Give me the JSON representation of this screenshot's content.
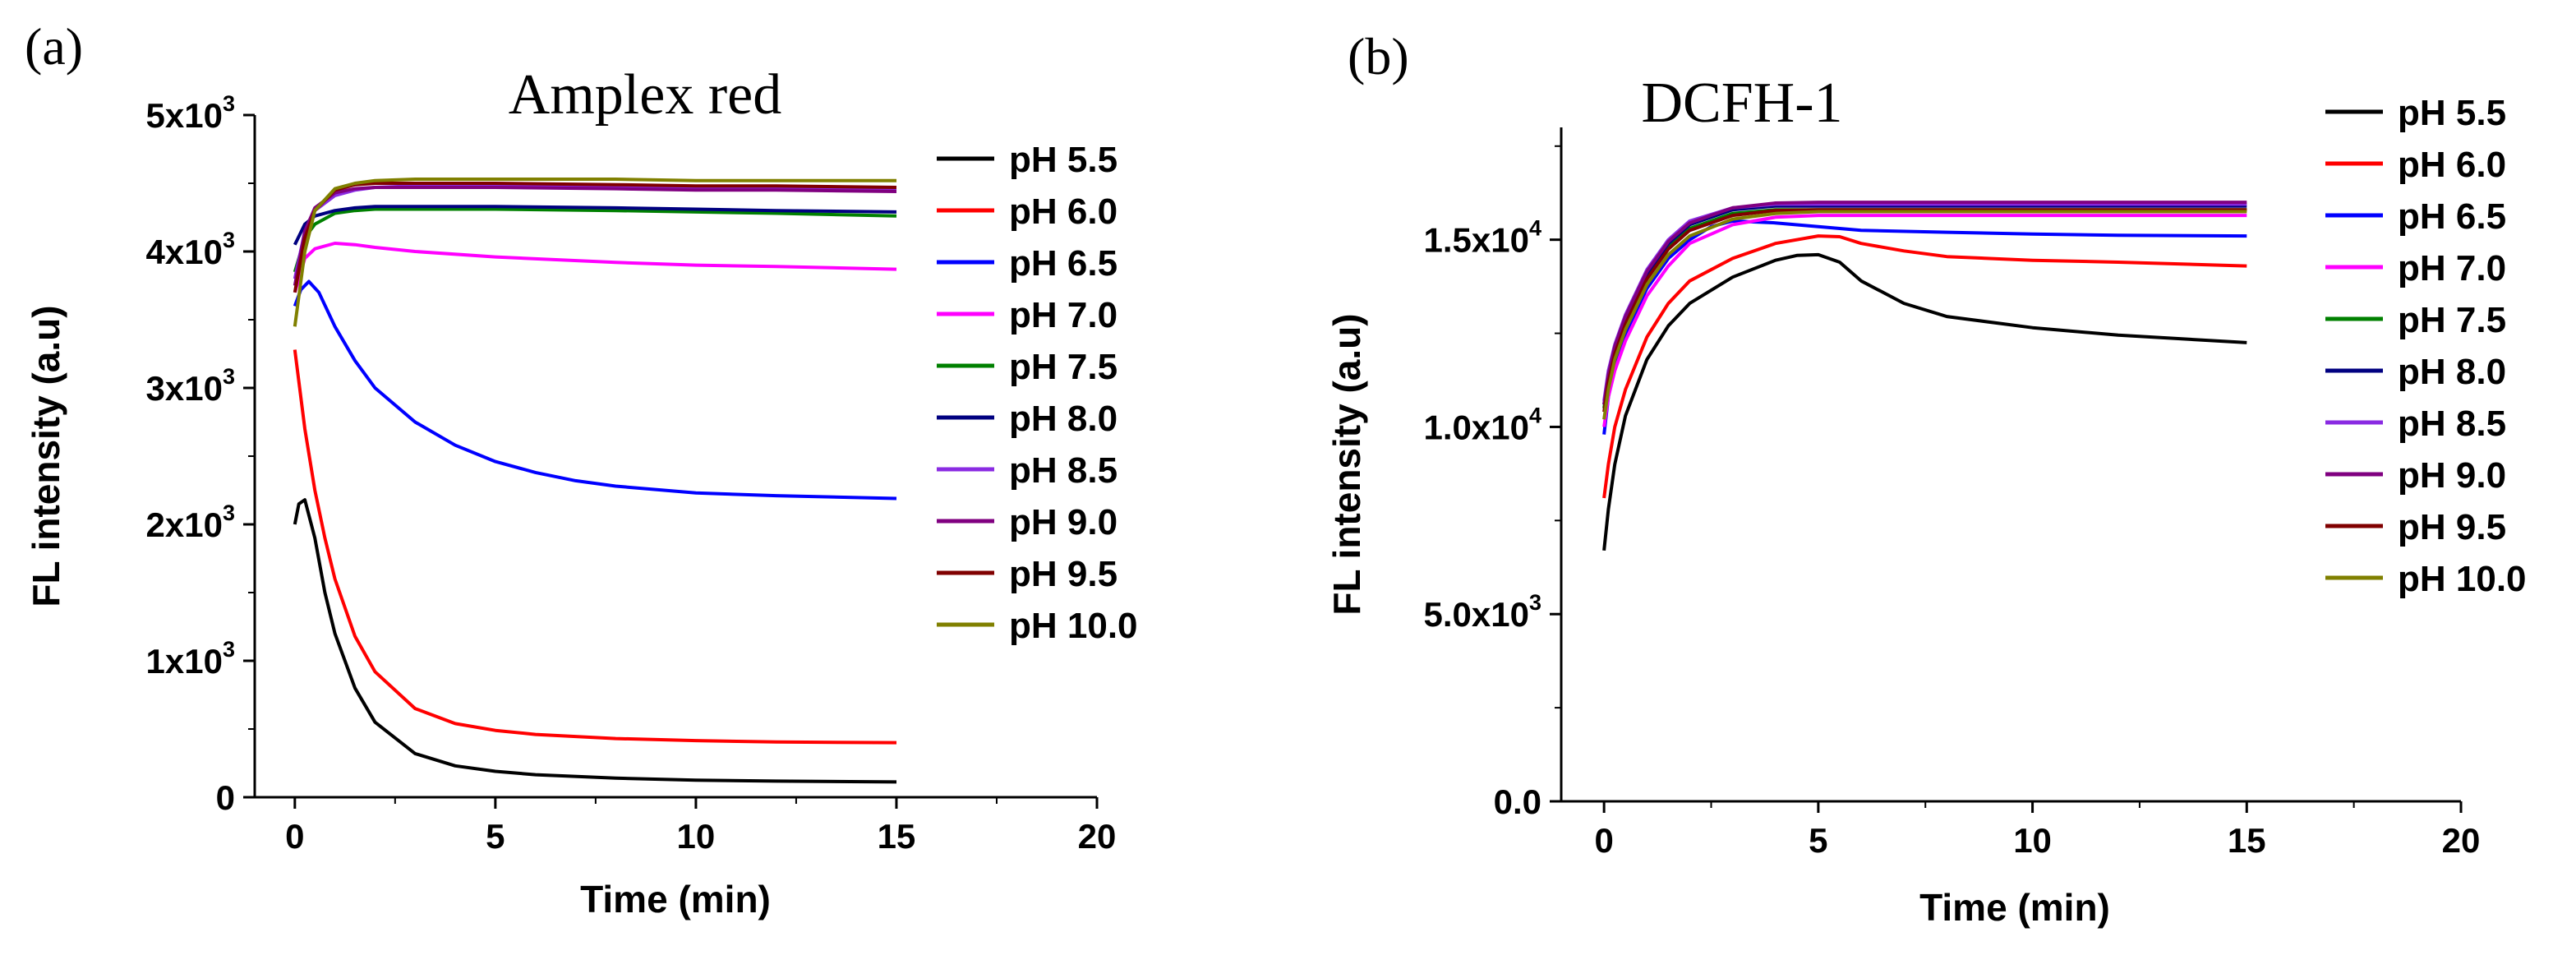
{
  "chart_data": [
    {
      "type": "line",
      "panel_label": "(a)",
      "title": "Amplex red",
      "xlabel": "Time (min)",
      "ylabel": "FL intensity (a.u)",
      "xlim": [
        -1,
        20
      ],
      "ylim": [
        0,
        5000
      ],
      "xticks": [
        "0",
        "5",
        "10",
        "15",
        "20"
      ],
      "yticks": [
        {
          "mantissa": "0",
          "exponent": ""
        },
        {
          "mantissa": "1x10",
          "exponent": "3"
        },
        {
          "mantissa": "2x10",
          "exponent": "3"
        },
        {
          "mantissa": "3x10",
          "exponent": "3"
        },
        {
          "mantissa": "4x10",
          "exponent": "3"
        },
        {
          "mantissa": "5x10",
          "exponent": "3"
        }
      ],
      "legend_position": "right",
      "series": [
        {
          "name": "pH 5.5",
          "color": "#000000",
          "x": [
            0,
            0.1,
            0.25,
            0.5,
            0.75,
            1,
            1.5,
            2,
            3,
            4,
            5,
            6,
            8,
            10,
            12,
            15
          ],
          "values": [
            2000,
            2150,
            2180,
            1900,
            1500,
            1200,
            800,
            550,
            320,
            230,
            190,
            165,
            140,
            125,
            118,
            112
          ]
        },
        {
          "name": "pH 6.0",
          "color": "#ff0000",
          "x": [
            0,
            0.25,
            0.5,
            0.75,
            1,
            1.5,
            2,
            3,
            4,
            5,
            6,
            8,
            10,
            12,
            15
          ],
          "values": [
            3280,
            2700,
            2250,
            1900,
            1600,
            1180,
            920,
            650,
            540,
            490,
            460,
            430,
            415,
            405,
            400
          ]
        },
        {
          "name": "pH 6.5",
          "color": "#0000ff",
          "x": [
            0,
            0.15,
            0.35,
            0.6,
            1,
            1.5,
            2,
            3,
            4,
            5,
            6,
            7,
            8,
            10,
            12,
            15
          ],
          "values": [
            3600,
            3720,
            3780,
            3700,
            3450,
            3200,
            3000,
            2750,
            2580,
            2460,
            2380,
            2320,
            2280,
            2230,
            2210,
            2190
          ]
        },
        {
          "name": "pH 7.0",
          "color": "#ff00ff",
          "x": [
            0,
            0.25,
            0.5,
            1,
            1.5,
            2,
            3,
            5,
            8,
            10,
            12,
            15
          ],
          "values": [
            3700,
            3950,
            4020,
            4060,
            4050,
            4030,
            4000,
            3960,
            3920,
            3900,
            3890,
            3870
          ]
        },
        {
          "name": "pH 7.5",
          "color": "#008000",
          "x": [
            0,
            0.25,
            0.5,
            1,
            1.5,
            2,
            3,
            5,
            8,
            10,
            12,
            15
          ],
          "values": [
            3850,
            4100,
            4200,
            4280,
            4300,
            4310,
            4310,
            4310,
            4300,
            4290,
            4280,
            4260
          ]
        },
        {
          "name": "pH 8.0",
          "color": "#000080",
          "x": [
            0,
            0.25,
            0.5,
            1,
            1.5,
            2,
            3,
            5,
            8,
            10,
            12,
            15
          ],
          "values": [
            4050,
            4200,
            4260,
            4300,
            4320,
            4330,
            4330,
            4330,
            4320,
            4310,
            4300,
            4290
          ]
        },
        {
          "name": "pH 8.5",
          "color": "#8a2be2",
          "x": [
            0,
            0.25,
            0.5,
            1,
            1.5,
            2,
            3,
            5,
            8,
            10,
            12,
            15
          ],
          "values": [
            3800,
            4150,
            4300,
            4410,
            4450,
            4470,
            4480,
            4480,
            4470,
            4460,
            4460,
            4450
          ]
        },
        {
          "name": "pH 9.0",
          "color": "#800080",
          "x": [
            0,
            0.25,
            0.5,
            1,
            1.5,
            2,
            3,
            5,
            8,
            10,
            12,
            15
          ],
          "values": [
            3750,
            4150,
            4320,
            4430,
            4460,
            4470,
            4470,
            4470,
            4460,
            4450,
            4450,
            4440
          ]
        },
        {
          "name": "pH 9.5",
          "color": "#800000",
          "x": [
            0,
            0.25,
            0.5,
            1,
            1.5,
            2,
            3,
            5,
            8,
            10,
            12,
            15
          ],
          "values": [
            3700,
            4100,
            4300,
            4450,
            4490,
            4500,
            4500,
            4500,
            4490,
            4480,
            4480,
            4470
          ]
        },
        {
          "name": "pH 10.0",
          "color": "#808000",
          "x": [
            0,
            0.25,
            0.5,
            1,
            1.5,
            2,
            3,
            5,
            8,
            10,
            12,
            15
          ],
          "values": [
            3450,
            4000,
            4300,
            4460,
            4500,
            4520,
            4530,
            4530,
            4530,
            4520,
            4520,
            4520
          ]
        }
      ]
    },
    {
      "type": "line",
      "panel_label": "(b)",
      "title": "DCFH-1",
      "xlabel": "Time (min)",
      "ylabel": "FL intensity (a.u)",
      "xlim": [
        -1,
        20
      ],
      "ylim": [
        0,
        18000
      ],
      "xticks": [
        "0",
        "5",
        "10",
        "15",
        "20"
      ],
      "yticks": [
        {
          "mantissa": "0.0",
          "exponent": ""
        },
        {
          "mantissa": "5.0x10",
          "exponent": "3"
        },
        {
          "mantissa": "1.0x10",
          "exponent": "4"
        },
        {
          "mantissa": "1.5x10",
          "exponent": "4"
        }
      ],
      "legend_position": "right",
      "series": [
        {
          "name": "pH 5.5",
          "color": "#000000",
          "x": [
            0,
            0.1,
            0.25,
            0.5,
            1,
            1.5,
            2,
            3,
            4,
            4.5,
            5,
            5.5,
            6,
            7,
            8,
            10,
            12,
            15
          ],
          "values": [
            6700,
            7800,
            9000,
            10300,
            11800,
            12700,
            13300,
            14000,
            14450,
            14580,
            14600,
            14400,
            13900,
            13300,
            12950,
            12650,
            12450,
            12250
          ]
        },
        {
          "name": "pH 6.0",
          "color": "#ff0000",
          "x": [
            0,
            0.1,
            0.25,
            0.5,
            1,
            1.5,
            2,
            3,
            4,
            5,
            5.5,
            6,
            7,
            8,
            10,
            12,
            15
          ],
          "values": [
            8100,
            9000,
            10000,
            11000,
            12400,
            13300,
            13900,
            14500,
            14900,
            15100,
            15080,
            14900,
            14700,
            14550,
            14450,
            14400,
            14300
          ]
        },
        {
          "name": "pH 6.5",
          "color": "#0000ff",
          "x": [
            0,
            0.1,
            0.25,
            0.5,
            1,
            1.5,
            2,
            2.5,
            3,
            4,
            5,
            6,
            8,
            10,
            12,
            15
          ],
          "values": [
            9800,
            10800,
            11600,
            12500,
            13700,
            14500,
            15000,
            15350,
            15500,
            15450,
            15350,
            15250,
            15200,
            15150,
            15120,
            15100
          ]
        },
        {
          "name": "pH 7.0",
          "color": "#ff00ff",
          "x": [
            0,
            0.1,
            0.25,
            0.5,
            1,
            1.5,
            2,
            3,
            4,
            5,
            8,
            10,
            12,
            15
          ],
          "values": [
            10000,
            10800,
            11500,
            12300,
            13500,
            14300,
            14900,
            15400,
            15600,
            15650,
            15650,
            15650,
            15650,
            15650
          ]
        },
        {
          "name": "pH 7.5",
          "color": "#008000",
          "x": [
            0,
            0.1,
            0.25,
            0.5,
            1,
            1.5,
            2,
            3,
            4,
            5,
            8,
            10,
            12,
            15
          ],
          "values": [
            10500,
            11300,
            12000,
            12800,
            14000,
            14800,
            15300,
            15700,
            15800,
            15800,
            15800,
            15800,
            15800,
            15800
          ]
        },
        {
          "name": "pH 8.0",
          "color": "#000080",
          "x": [
            0,
            0.1,
            0.25,
            0.5,
            1,
            1.5,
            2,
            3,
            4,
            5,
            8,
            10,
            12,
            15
          ],
          "values": [
            10600,
            11400,
            12100,
            12900,
            14100,
            14900,
            15400,
            15800,
            15900,
            15900,
            15900,
            15900,
            15900,
            15900
          ]
        },
        {
          "name": "pH 8.5",
          "color": "#8a2be2",
          "x": [
            0,
            0.1,
            0.25,
            0.5,
            1,
            1.5,
            2,
            3,
            4,
            5,
            8,
            10,
            12,
            15
          ],
          "values": [
            10700,
            11500,
            12200,
            13000,
            14200,
            15000,
            15500,
            15850,
            15950,
            15950,
            15950,
            15950,
            15950,
            15950
          ]
        },
        {
          "name": "pH 9.0",
          "color": "#800080",
          "x": [
            0,
            0.1,
            0.25,
            0.5,
            1,
            1.5,
            2,
            3,
            4,
            5,
            8,
            10,
            12,
            15
          ],
          "values": [
            10600,
            11400,
            12150,
            12950,
            14150,
            14950,
            15450,
            15850,
            15980,
            16000,
            16000,
            16000,
            16000,
            16000
          ]
        },
        {
          "name": "pH 9.5",
          "color": "#800000",
          "x": [
            0,
            0.1,
            0.25,
            0.5,
            1,
            1.5,
            2,
            3,
            4,
            5,
            8,
            10,
            12,
            15
          ],
          "values": [
            10400,
            11200,
            11950,
            12750,
            13950,
            14750,
            15250,
            15650,
            15780,
            15800,
            15800,
            15800,
            15800,
            15800
          ]
        },
        {
          "name": "pH 10.0",
          "color": "#808000",
          "x": [
            0,
            0.1,
            0.25,
            0.5,
            1,
            1.5,
            2,
            3,
            4,
            5,
            8,
            10,
            12,
            15
          ],
          "values": [
            10200,
            11000,
            11800,
            12600,
            13800,
            14600,
            15100,
            15550,
            15700,
            15750,
            15750,
            15750,
            15750,
            15750
          ]
        }
      ]
    }
  ]
}
